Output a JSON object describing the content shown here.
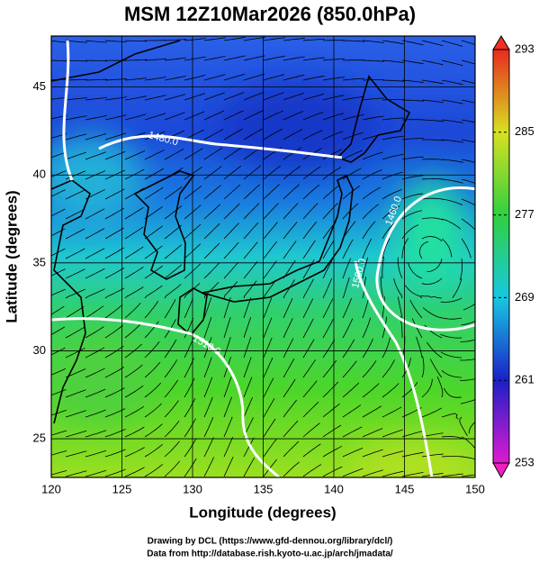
{
  "chart_data": {
    "type": "map",
    "title": "MSM 12Z10Mar2026 (850.0hPa)",
    "x_label": "Longitude (degrees)",
    "y_label": "Latitude  (degrees)",
    "xlim": [
      120,
      150
    ],
    "ylim": [
      22.8,
      47.9
    ],
    "xticks": [
      120,
      125,
      130,
      135,
      140,
      145,
      150
    ],
    "yticks": [
      25,
      30,
      35,
      40,
      45
    ],
    "grid": true,
    "colorbar": {
      "lim": [
        253,
        293
      ],
      "ticks": [
        253,
        261,
        269,
        277,
        285,
        293
      ]
    },
    "contour_labels": [
      "1480.0",
      "1460.0",
      "1500.0",
      "1510.0"
    ],
    "footer": [
      "Drawing by DCL (https://www.gfd-dennou.org/library/dcl/)",
      "Data from http://database.rish.kyoto-u.ac.jp/arch/jmadata/"
    ]
  }
}
